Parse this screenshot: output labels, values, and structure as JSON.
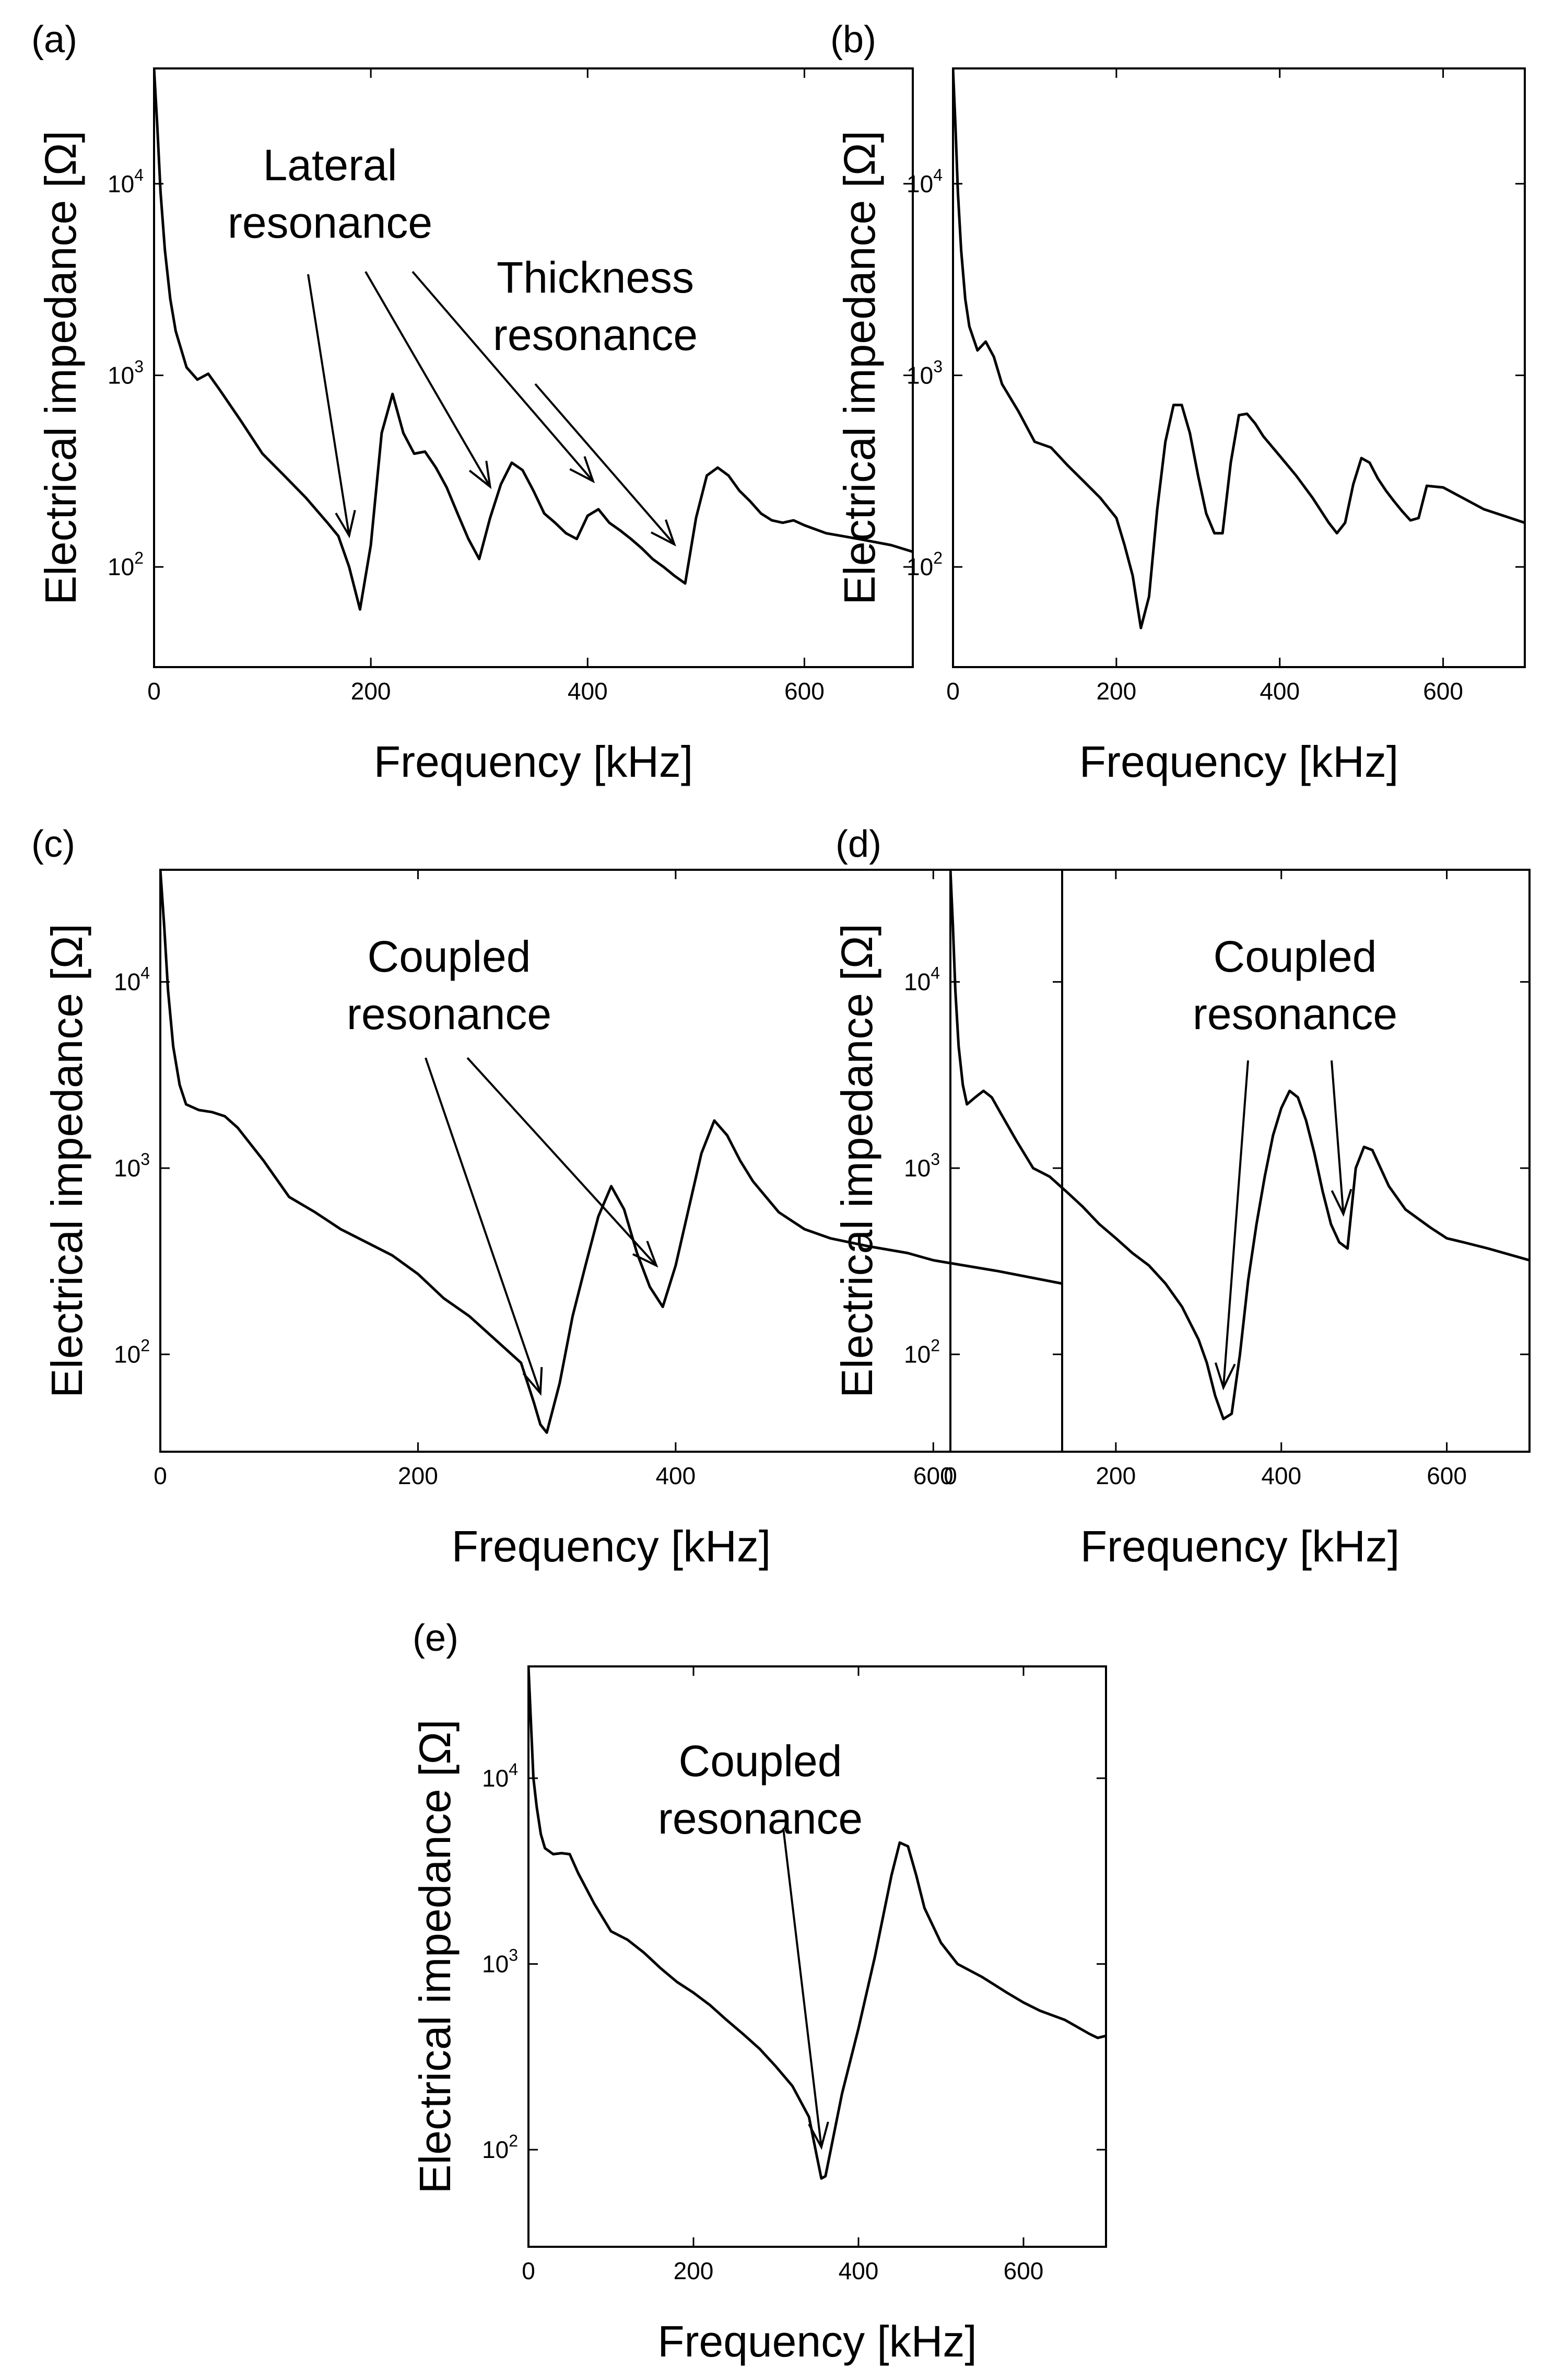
{
  "figure": {
    "background": "#ffffff",
    "line_color": "#000000"
  },
  "chart_data": [
    {
      "id": "a",
      "panel_label": "(a)",
      "type": "line",
      "title": "",
      "xlabel": "Frequency [kHz]",
      "ylabel": "Electrical impedance [Ω]",
      "xlim": [
        0,
        700
      ],
      "ylim": [
        30,
        40000
      ],
      "yscale": "log",
      "grid": false,
      "xticks": [
        0,
        200,
        400,
        600
      ],
      "yticks": [
        {
          "base": "10",
          "exp": "2",
          "value": 100
        },
        {
          "base": "10",
          "exp": "3",
          "value": 1000
        },
        {
          "base": "10",
          "exp": "4",
          "value": 10000
        }
      ],
      "series": [
        {
          "name": "impedance",
          "x": [
            0,
            3,
            6,
            10,
            15,
            20,
            30,
            40,
            50,
            60,
            80,
            100,
            120,
            140,
            160,
            170,
            180,
            190,
            200,
            210,
            220,
            230,
            240,
            250,
            260,
            270,
            280,
            290,
            300,
            310,
            320,
            330,
            340,
            350,
            360,
            370,
            380,
            390,
            400,
            410,
            420,
            430,
            440,
            450,
            460,
            470,
            480,
            490,
            500,
            510,
            520,
            530,
            540,
            550,
            560,
            570,
            580,
            590,
            600,
            620,
            650,
            680,
            700
          ],
          "y": [
            40000,
            20000,
            9000,
            4500,
            2500,
            1700,
            1100,
            950,
            1020,
            850,
            580,
            390,
            300,
            230,
            170,
            145,
            100,
            60,
            130,
            500,
            800,
            500,
            390,
            400,
            330,
            260,
            190,
            140,
            110,
            180,
            270,
            350,
            320,
            250,
            190,
            170,
            150,
            140,
            185,
            200,
            170,
            155,
            140,
            125,
            110,
            100,
            90,
            82,
            180,
            300,
            330,
            300,
            250,
            220,
            190,
            175,
            170,
            175,
            165,
            150,
            140,
            130,
            120
          ]
        }
      ],
      "annotations": [
        {
          "text_lines": [
            "Lateral",
            "resonance"
          ],
          "points_to_x": [
            180,
            310,
            405
          ]
        },
        {
          "text_lines": [
            "Thickness",
            "resonance"
          ],
          "points_to_x": [
            480
          ]
        }
      ]
    },
    {
      "id": "b",
      "panel_label": "(b)",
      "type": "line",
      "title": "",
      "xlabel": "Frequency [kHz]",
      "ylabel": "Electrical impedance [Ω]",
      "xlim": [
        0,
        700
      ],
      "ylim": [
        30,
        40000
      ],
      "yscale": "log",
      "grid": false,
      "xticks": [
        0,
        200,
        400,
        600
      ],
      "yticks": [
        {
          "base": "10",
          "exp": "2",
          "value": 100
        },
        {
          "base": "10",
          "exp": "3",
          "value": 1000
        },
        {
          "base": "10",
          "exp": "4",
          "value": 10000
        }
      ],
      "series": [
        {
          "name": "impedance",
          "x": [
            0,
            3,
            6,
            10,
            15,
            20,
            30,
            40,
            50,
            60,
            80,
            100,
            120,
            140,
            160,
            180,
            200,
            210,
            220,
            230,
            240,
            250,
            260,
            270,
            280,
            290,
            300,
            310,
            320,
            330,
            340,
            350,
            360,
            370,
            380,
            400,
            420,
            440,
            460,
            470,
            480,
            490,
            500,
            510,
            520,
            530,
            540,
            550,
            560,
            570,
            580,
            600,
            650,
            700
          ],
          "y": [
            40000,
            20000,
            9000,
            4500,
            2500,
            1800,
            1350,
            1500,
            1250,
            900,
            650,
            450,
            420,
            340,
            280,
            230,
            180,
            130,
            90,
            48,
            70,
            200,
            450,
            700,
            700,
            500,
            300,
            190,
            150,
            150,
            350,
            620,
            630,
            560,
            480,
            380,
            300,
            230,
            170,
            150,
            170,
            270,
            370,
            350,
            290,
            250,
            220,
            195,
            175,
            180,
            265,
            260,
            200,
            170
          ]
        }
      ],
      "annotations": []
    },
    {
      "id": "c",
      "panel_label": "(c)",
      "type": "line",
      "title": "",
      "xlabel": "Frequency [kHz]",
      "ylabel": "Electrical impedance [Ω]",
      "xlim": [
        0,
        700
      ],
      "ylim": [
        30,
        40000
      ],
      "yscale": "log",
      "grid": false,
      "xticks": [
        0,
        200,
        400,
        600
      ],
      "yticks": [
        {
          "base": "10",
          "exp": "2",
          "value": 100
        },
        {
          "base": "10",
          "exp": "3",
          "value": 1000
        },
        {
          "base": "10",
          "exp": "4",
          "value": 10000
        }
      ],
      "series": [
        {
          "name": "impedance",
          "x": [
            0,
            3,
            6,
            10,
            15,
            20,
            30,
            40,
            50,
            60,
            80,
            100,
            120,
            140,
            160,
            180,
            200,
            220,
            240,
            260,
            280,
            290,
            295,
            300,
            310,
            320,
            330,
            340,
            350,
            360,
            370,
            380,
            390,
            400,
            410,
            420,
            430,
            440,
            450,
            460,
            480,
            500,
            520,
            550,
            580,
            600,
            650,
            700
          ],
          "y": [
            40000,
            20000,
            9000,
            4500,
            2800,
            2200,
            2050,
            2000,
            1900,
            1650,
            1100,
            700,
            580,
            470,
            400,
            340,
            270,
            200,
            160,
            120,
            90,
            55,
            42,
            38,
            70,
            160,
            300,
            550,
            800,
            600,
            350,
            230,
            180,
            300,
            600,
            1200,
            1800,
            1500,
            1100,
            850,
            580,
            470,
            420,
            380,
            350,
            320,
            280,
            240
          ]
        }
      ],
      "annotations": [
        {
          "text_lines": [
            "Coupled",
            "resonance"
          ],
          "points_to_x": [
            295,
            385
          ]
        }
      ]
    },
    {
      "id": "d",
      "panel_label": "(d)",
      "type": "line",
      "title": "",
      "xlabel": "Frequency [kHz]",
      "ylabel": "Electrical impedance [Ω]",
      "xlim": [
        0,
        700
      ],
      "ylim": [
        30,
        40000
      ],
      "yscale": "log",
      "grid": false,
      "xticks": [
        0,
        200,
        400,
        600
      ],
      "yticks": [
        {
          "base": "10",
          "exp": "2",
          "value": 100
        },
        {
          "base": "10",
          "exp": "3",
          "value": 1000
        },
        {
          "base": "10",
          "exp": "4",
          "value": 10000
        }
      ],
      "series": [
        {
          "name": "impedance",
          "x": [
            0,
            3,
            6,
            10,
            15,
            20,
            30,
            40,
            50,
            60,
            80,
            100,
            120,
            140,
            160,
            180,
            200,
            220,
            240,
            260,
            280,
            300,
            310,
            320,
            330,
            340,
            350,
            360,
            370,
            380,
            390,
            400,
            410,
            420,
            430,
            440,
            450,
            460,
            470,
            480,
            490,
            500,
            510,
            520,
            530,
            550,
            580,
            600,
            620,
            650,
            700
          ],
          "y": [
            40000,
            20000,
            9000,
            4500,
            2800,
            2200,
            2400,
            2600,
            2400,
            2000,
            1400,
            1000,
            900,
            750,
            620,
            500,
            420,
            350,
            300,
            240,
            180,
            120,
            90,
            60,
            45,
            48,
            100,
            250,
            500,
            900,
            1500,
            2100,
            2600,
            2400,
            1800,
            1200,
            750,
            500,
            400,
            370,
            1000,
            1300,
            1250,
            1000,
            800,
            600,
            480,
            420,
            400,
            370,
            320
          ]
        }
      ],
      "annotations": [
        {
          "text_lines": [
            "Coupled",
            "resonance"
          ],
          "points_to_x": [
            330,
            475
          ]
        }
      ]
    },
    {
      "id": "e",
      "panel_label": "(e)",
      "type": "line",
      "title": "",
      "xlabel": "Frequency [kHz]",
      "ylabel": "Electrical impedance [Ω]",
      "xlim": [
        0,
        700
      ],
      "ylim": [
        30,
        40000
      ],
      "yscale": "log",
      "grid": false,
      "xticks": [
        0,
        200,
        400,
        600
      ],
      "yticks": [
        {
          "base": "10",
          "exp": "2",
          "value": 100
        },
        {
          "base": "10",
          "exp": "3",
          "value": 1000
        },
        {
          "base": "10",
          "exp": "4",
          "value": 10000
        }
      ],
      "series": [
        {
          "name": "impedance",
          "x": [
            0,
            3,
            6,
            10,
            15,
            20,
            30,
            40,
            50,
            60,
            80,
            100,
            120,
            140,
            160,
            180,
            200,
            220,
            240,
            260,
            280,
            300,
            320,
            340,
            350,
            355,
            360,
            370,
            380,
            400,
            420,
            440,
            450,
            460,
            470,
            480,
            500,
            520,
            550,
            580,
            600,
            620,
            650,
            680,
            690,
            700
          ],
          "y": [
            40000,
            20000,
            10000,
            7000,
            5000,
            4200,
            3900,
            3950,
            3900,
            3100,
            2100,
            1500,
            1350,
            1150,
            950,
            800,
            700,
            600,
            500,
            420,
            350,
            280,
            220,
            150,
            90,
            70,
            72,
            120,
            200,
            450,
            1100,
            3000,
            4500,
            4300,
            3000,
            2000,
            1300,
            1000,
            850,
            700,
            620,
            560,
            500,
            420,
            400,
            410
          ]
        }
      ],
      "annotations": [
        {
          "text_lines": [
            "Coupled",
            "resonance"
          ],
          "points_to_x": [
            355
          ]
        }
      ]
    }
  ]
}
